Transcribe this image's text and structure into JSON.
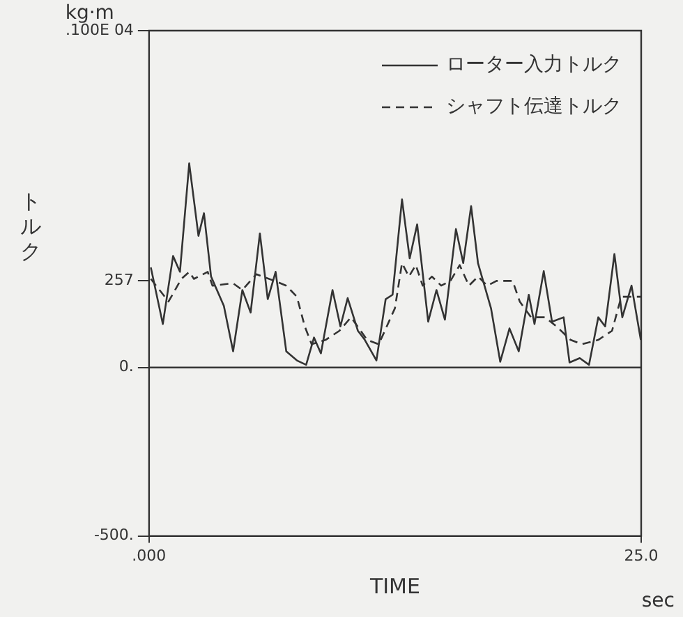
{
  "chart_data": {
    "type": "line",
    "xlabel": "TIME",
    "ylabel": "トルク",
    "annotations": [
      "kg·m",
      "sec"
    ],
    "xlim": [
      0,
      25
    ],
    "xticks": [
      {
        "value": 0,
        "label": ".000"
      },
      {
        "value": 25,
        "label": "25.0"
      }
    ],
    "ylim": [
      -500,
      1000
    ],
    "yticks": [
      {
        "value": -500,
        "label": "-500."
      },
      {
        "value": 0,
        "label": "0."
      },
      {
        "value": 257,
        "label": "257"
      },
      {
        "value": 1000,
        "label": ".100E 04"
      }
    ],
    "ref_lines": [
      {
        "axis": "y",
        "value": 0,
        "color": "#333333"
      }
    ],
    "grid": false,
    "legend": "top right",
    "marker": "none",
    "series": [
      {
        "name": "ローター入力トルク",
        "color": "#333333",
        "line_style": "solid",
        "x": [
          0.09,
          0.7,
          1.22,
          1.57,
          2.04,
          2.51,
          2.79,
          3.15,
          3.8,
          4.27,
          4.74,
          5.16,
          5.63,
          6.03,
          6.43,
          6.97,
          7.51,
          7.98,
          8.38,
          8.73,
          9.32,
          9.72,
          10.09,
          10.61,
          10.96,
          11.55,
          12.02,
          12.37,
          12.85,
          13.24,
          13.62,
          14.18,
          14.6,
          15.03,
          15.59,
          15.96,
          16.36,
          16.71,
          17.37,
          17.84,
          18.31,
          18.78,
          19.29,
          19.58,
          20.05,
          20.47,
          21.06,
          21.36,
          21.88,
          22.35,
          22.82,
          23.17,
          23.64,
          24.04,
          24.51,
          24.98
        ],
        "values": [
          297,
          129,
          331,
          284,
          606,
          391,
          458,
          270,
          183,
          48,
          230,
          163,
          398,
          203,
          284,
          48,
          21,
          8,
          89,
          42,
          230,
          122,
          206,
          109,
          82,
          21,
          203,
          216,
          499,
          324,
          425,
          136,
          230,
          142,
          411,
          310,
          479,
          310,
          176,
          17,
          116,
          48,
          216,
          129,
          286,
          136,
          149,
          15,
          28,
          8,
          149,
          122,
          337,
          149,
          243,
          82
        ]
      },
      {
        "name": "シャフト伝達トルク",
        "color": "#333333",
        "line_style": "dashed",
        "x": [
          0.09,
          0.99,
          1.64,
          2.04,
          2.28,
          2.98,
          3.22,
          4.27,
          4.74,
          5.45,
          6.38,
          6.97,
          7.51,
          7.91,
          8.26,
          8.97,
          9.67,
          10.26,
          11.08,
          11.67,
          12.49,
          12.85,
          13.2,
          13.55,
          13.9,
          14.37,
          14.84,
          15.31,
          15.78,
          16.25,
          16.71,
          17.18,
          17.65,
          18.47,
          18.83,
          19.41,
          20.12,
          20.7,
          21.41,
          21.99,
          22.82,
          23.52,
          23.99,
          24.98
        ],
        "values": [
          263,
          196,
          263,
          284,
          263,
          284,
          243,
          250,
          230,
          277,
          257,
          243,
          210,
          122,
          69,
          82,
          109,
          149,
          82,
          69,
          176,
          310,
          270,
          304,
          243,
          270,
          243,
          257,
          304,
          243,
          270,
          243,
          257,
          257,
          196,
          149,
          149,
          122,
          82,
          69,
          82,
          109,
          210,
          210
        ]
      }
    ]
  }
}
